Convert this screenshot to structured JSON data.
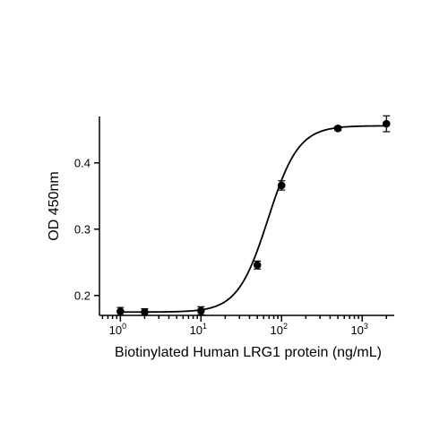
{
  "chart_data": {
    "type": "scatter",
    "xlabel": "Biotinylated Human LRG1 protein (ng/mL)",
    "ylabel": "OD 450nm",
    "x_scale": "log10",
    "xlim": [
      0.55,
      2500
    ],
    "ylim": [
      0.17,
      0.47
    ],
    "x_ticks": [
      {
        "value": 1,
        "base": "10",
        "exp": "0"
      },
      {
        "value": 10,
        "base": "10",
        "exp": "1"
      },
      {
        "value": 100,
        "base": "10",
        "exp": "2"
      },
      {
        "value": 1000,
        "base": "10",
        "exp": "3"
      }
    ],
    "y_ticks": [
      {
        "value": 0.2,
        "label": "0.2"
      },
      {
        "value": 0.3,
        "label": "0.3"
      },
      {
        "value": 0.4,
        "label": "0.4"
      }
    ],
    "points": [
      {
        "x": 1,
        "y": 0.176,
        "err": 0.006
      },
      {
        "x": 2,
        "y": 0.175,
        "err": 0.005
      },
      {
        "x": 10,
        "y": 0.177,
        "err": 0.006
      },
      {
        "x": 50,
        "y": 0.246,
        "err": 0.006
      },
      {
        "x": 100,
        "y": 0.366,
        "err": 0.007
      },
      {
        "x": 500,
        "y": 0.452,
        "err": 0.003
      },
      {
        "x": 2000,
        "y": 0.459,
        "err": 0.012
      }
    ],
    "fit": {
      "type": "4PL",
      "bottom": 0.175,
      "top": 0.456,
      "ec50": 68,
      "hill": 2.3
    },
    "grid": false,
    "legend": "none"
  }
}
